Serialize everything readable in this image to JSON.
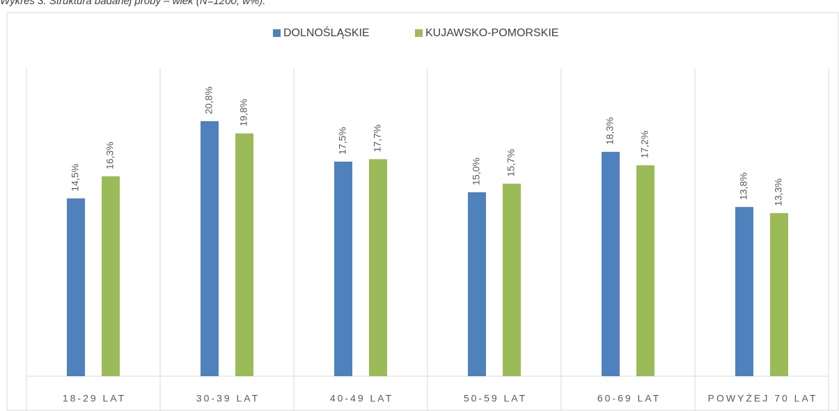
{
  "chart_data": {
    "type": "bar",
    "title": "Wykres 3. Struktura badanej próby – wiek (N=1200, w%).",
    "categories": [
      "18-29 LAT",
      "30-39 LAT",
      "40-49 LAT",
      "50-59 LAT",
      "60-69 LAT",
      "POWYŻEJ 70 LAT"
    ],
    "series": [
      {
        "name": "DOLNOŚLĄSKIE",
        "color": "#4f81bd",
        "values": [
          14.5,
          20.8,
          17.5,
          15.0,
          18.3,
          13.8
        ],
        "value_labels": [
          "14,5%",
          "20,8%",
          "17,5%",
          "15,0%",
          "18,3%",
          "13,8%"
        ]
      },
      {
        "name": "KUJAWSKO-POMORSKIE",
        "color": "#9bbb59",
        "values": [
          16.3,
          19.8,
          17.7,
          15.7,
          17.2,
          13.3
        ],
        "value_labels": [
          "16,3%",
          "19,8%",
          "17,7%",
          "15,7%",
          "17,2%",
          "13,3%"
        ]
      }
    ],
    "ylim": [
      0,
      25
    ],
    "legend": "top"
  }
}
